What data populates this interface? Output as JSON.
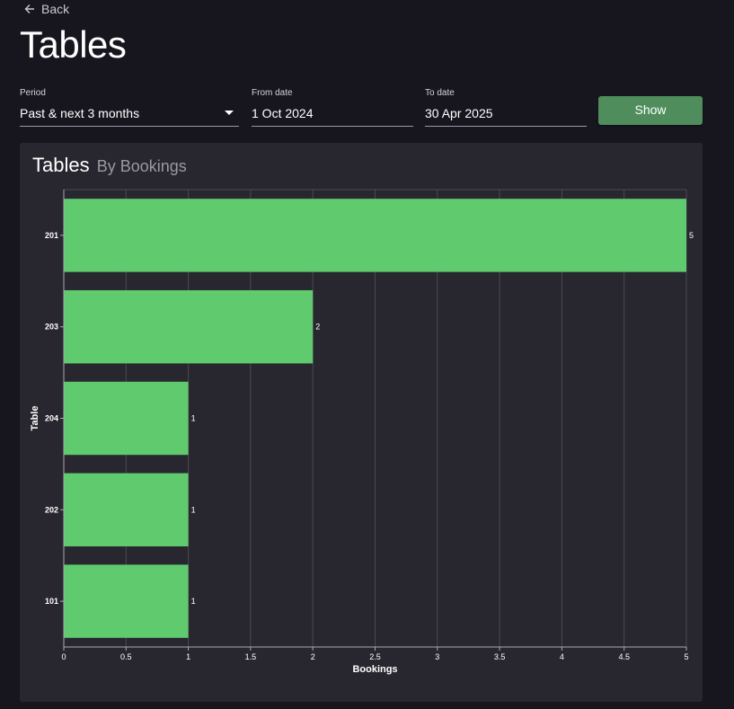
{
  "nav": {
    "back_label": "Back",
    "back_icon": "arrow-left-icon"
  },
  "page": {
    "title": "Tables"
  },
  "filters": {
    "period_label": "Period",
    "period_value": "Past & next 3 months",
    "from_label": "From date",
    "from_value": "1 Oct 2024",
    "to_label": "To date",
    "to_value": "30 Apr 2025",
    "show_label": "Show"
  },
  "card": {
    "title": "Tables",
    "subtitle": "By Bookings"
  },
  "colors": {
    "bar": "#5fca6e",
    "button": "#4f8e5c",
    "card": "#28272f",
    "background": "#17161e"
  },
  "chart_data": {
    "type": "bar",
    "orientation": "horizontal",
    "categories": [
      "201",
      "203",
      "204",
      "202",
      "101"
    ],
    "values": [
      5,
      2,
      1,
      1,
      1
    ],
    "xlabel": "Bookings",
    "ylabel": "Table",
    "xlim": [
      0,
      5
    ],
    "xticks": [
      "0",
      "0.5",
      "1",
      "1.5",
      "2",
      "2.5",
      "3",
      "3.5",
      "4",
      "4.5",
      "5"
    ],
    "grid": true,
    "data_labels": true
  }
}
